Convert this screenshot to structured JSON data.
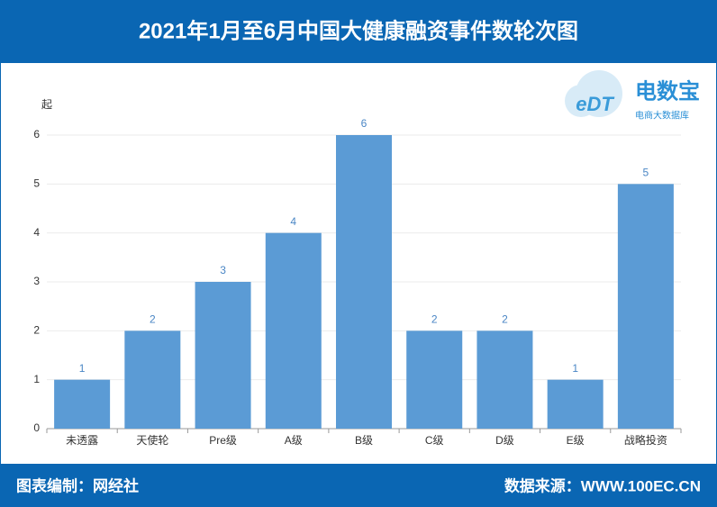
{
  "chart_data": {
    "type": "bar",
    "title": "2021年1月至6月中国大健康融资事件数轮次图",
    "y_label": "起",
    "categories": [
      "未透露",
      "天使轮",
      "Pre级",
      "A级",
      "B级",
      "C级",
      "D级",
      "E级",
      "战略投资"
    ],
    "values": [
      1,
      2,
      3,
      4,
      6,
      2,
      2,
      1,
      5
    ],
    "color": "#5b9bd5",
    "ylim": [
      0,
      6
    ],
    "yticks": [
      0,
      1,
      2,
      3,
      4,
      5,
      6
    ],
    "grid": true
  },
  "logo": {
    "mark": "eDT",
    "name": "电数宝",
    "tagline": "电商大数据库"
  },
  "footer": {
    "left": "图表编制：网经社",
    "right": "数据来源：WWW.100EC.CN"
  }
}
